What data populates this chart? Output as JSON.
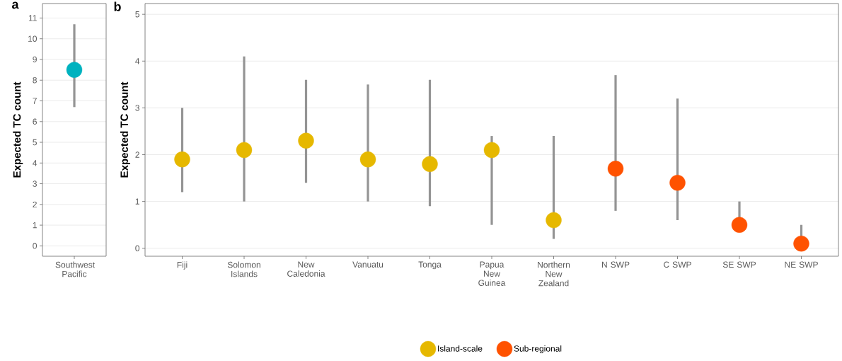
{
  "chart_data": [
    {
      "type": "scatter",
      "title": "a",
      "ylabel": "Expected TC count",
      "categories": [
        "Southwest Pacific"
      ],
      "values": [
        8.5
      ],
      "errors": [
        [
          6.7,
          10.7
        ]
      ],
      "color": "#00b2bf",
      "marker": "circle",
      "ylim": [
        -0.5,
        11.7
      ],
      "yticks": [
        0,
        1,
        2,
        3,
        4,
        5,
        6,
        7,
        8,
        9,
        10,
        11
      ],
      "grid": "y"
    },
    {
      "type": "scatter",
      "title": "b",
      "ylabel": "Expected TC count",
      "categories": [
        "Fiji",
        "Solomon Islands",
        "New Caledonia",
        "Vanuatu",
        "Tonga",
        "Papua New Guinea",
        "Northern New Zealand",
        "N SWP",
        "C SWP",
        "SE SWP",
        "NE SWP"
      ],
      "series": [
        {
          "name": "Island-scale",
          "color": "#e6b800",
          "values": [
            1.9,
            2.1,
            2.3,
            1.9,
            1.8,
            2.1,
            0.6,
            null,
            null,
            null,
            null
          ],
          "errors": [
            [
              1.2,
              3.0
            ],
            [
              1.0,
              4.1
            ],
            [
              1.4,
              3.6
            ],
            [
              1.0,
              3.5
            ],
            [
              0.9,
              3.6
            ],
            [
              0.5,
              2.4
            ],
            [
              0.2,
              2.4
            ],
            null,
            null,
            null,
            null
          ]
        },
        {
          "name": "Sub-regional",
          "color": "#ff5200",
          "values": [
            null,
            null,
            null,
            null,
            null,
            null,
            null,
            1.7,
            1.4,
            0.5,
            0.1
          ],
          "errors": [
            null,
            null,
            null,
            null,
            null,
            null,
            null,
            [
              0.8,
              3.7
            ],
            [
              0.6,
              3.2
            ],
            [
              0.5,
              1.0
            ],
            [
              0.1,
              0.5
            ]
          ]
        }
      ],
      "marker": "circle",
      "ylim": [
        -0.17,
        5.23
      ],
      "yticks": [
        0,
        1,
        2,
        3,
        4,
        5
      ],
      "grid": "y",
      "legend": "bottom"
    }
  ]
}
